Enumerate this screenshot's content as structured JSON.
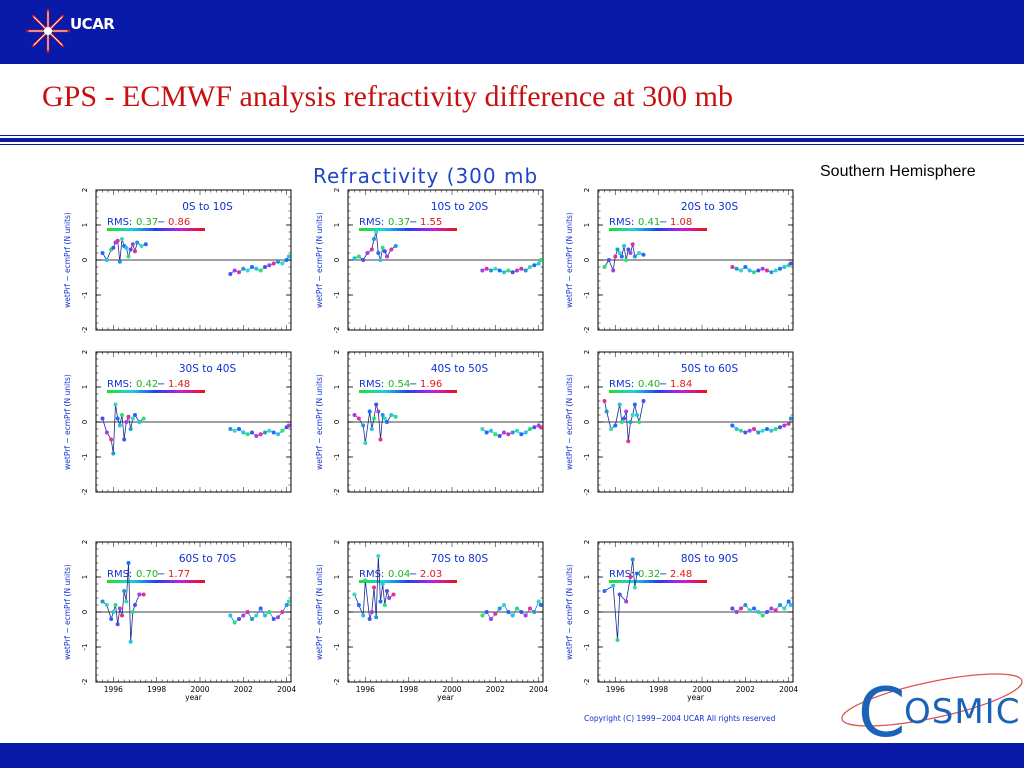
{
  "header": {
    "logo_text": "UCAR",
    "accent_color": "#0a1aa8"
  },
  "slide": {
    "title": "GPS - ECMWF analysis refractivity difference at 300 mb",
    "title_color": "#c81010",
    "subtitle": "Southern Hemisphere"
  },
  "figure": {
    "main_title": "Refractivity (300 mb",
    "y_axis_label": "wetPrf − ecmPrf (N units)",
    "x_axis_label": "year",
    "copyright": "Copyright (C) 1999−2004 UCAR All rights reserved"
  },
  "footer_logo": {
    "text": "OSMIC",
    "initial": "C"
  },
  "chart_data": [
    {
      "type": "scatter",
      "title": "0S to 10S",
      "rms_label": "RMS:",
      "rms_values": [
        "0.37",
        "0.86"
      ],
      "xlabel": "year",
      "ylabel": "wetPrf − ecmPrf (N units)",
      "xlim": [
        1995.2,
        2004.2
      ],
      "ylim": [
        -2,
        2
      ],
      "x_ticks": [
        "1996",
        "1998",
        "2000",
        "2002",
        "2004"
      ],
      "y_ticks": [
        "-2",
        "-1",
        "0",
        "1",
        "2"
      ],
      "series": [
        {
          "x": [
            1995.5,
            1995.7,
            1995.9,
            1996.0,
            1996.1,
            1996.2,
            1996.3,
            1996.4,
            1996.5,
            1996.6,
            1996.7,
            1996.8,
            1996.9,
            1997.0,
            1997.1,
            1997.3,
            1997.5
          ],
          "y": [
            0.2,
            0.0,
            0.3,
            0.35,
            0.5,
            0.55,
            -0.05,
            0.6,
            0.4,
            0.35,
            0.1,
            0.3,
            0.45,
            0.25,
            0.5,
            0.4,
            0.45
          ]
        },
        {
          "x": [
            2001.4,
            2001.6,
            2001.8,
            2002.0,
            2002.2,
            2002.4,
            2002.6,
            2002.8,
            2003.0,
            2003.2,
            2003.4,
            2003.6,
            2003.8,
            2004.0,
            2004.1
          ],
          "y": [
            -0.4,
            -0.3,
            -0.35,
            -0.25,
            -0.3,
            -0.2,
            -0.25,
            -0.3,
            -0.2,
            -0.15,
            -0.1,
            -0.05,
            -0.1,
            0.0,
            0.1
          ]
        }
      ]
    },
    {
      "type": "scatter",
      "title": "10S to 20S",
      "rms_label": "RMS:",
      "rms_values": [
        "0.37",
        "1.55"
      ],
      "xlabel": "year",
      "ylabel": "wetPrf − ecmPrf (N units)",
      "xlim": [
        1995.2,
        2004.2
      ],
      "ylim": [
        -2,
        2
      ],
      "x_ticks": [
        "1996",
        "1998",
        "2000",
        "2002",
        "2004"
      ],
      "y_ticks": [
        "-2",
        "-1",
        "0",
        "1",
        "2"
      ],
      "series": [
        {
          "x": [
            1995.5,
            1995.7,
            1995.9,
            1996.1,
            1996.3,
            1996.4,
            1996.5,
            1996.6,
            1996.7,
            1996.8,
            1996.9,
            1997.0,
            1997.2,
            1997.4
          ],
          "y": [
            0.05,
            0.1,
            0.0,
            0.2,
            0.3,
            0.6,
            0.8,
            0.2,
            0.0,
            0.35,
            0.25,
            0.1,
            0.3,
            0.4
          ]
        },
        {
          "x": [
            2001.4,
            2001.6,
            2001.8,
            2002.0,
            2002.2,
            2002.4,
            2002.6,
            2002.8,
            2003.0,
            2003.2,
            2003.4,
            2003.6,
            2003.8,
            2004.0,
            2004.1
          ],
          "y": [
            -0.3,
            -0.25,
            -0.3,
            -0.25,
            -0.3,
            -0.35,
            -0.3,
            -0.35,
            -0.3,
            -0.25,
            -0.3,
            -0.2,
            -0.15,
            -0.1,
            0.0
          ]
        }
      ]
    },
    {
      "type": "scatter",
      "title": "20S to 30S",
      "rms_label": "RMS:",
      "rms_values": [
        "0.41",
        "1.08"
      ],
      "xlabel": "year",
      "ylabel": "wetPrf − ecmPrf (N units)",
      "xlim": [
        1995.2,
        2004.2
      ],
      "ylim": [
        -2,
        2
      ],
      "x_ticks": [
        "1996",
        "1998",
        "2000",
        "2002",
        "2004"
      ],
      "y_ticks": [
        "-2",
        "-1",
        "0",
        "1",
        "2"
      ],
      "series": [
        {
          "x": [
            1995.5,
            1995.7,
            1995.9,
            1996.0,
            1996.1,
            1996.2,
            1996.3,
            1996.4,
            1996.5,
            1996.6,
            1996.7,
            1996.8,
            1996.9,
            1997.1,
            1997.3
          ],
          "y": [
            -0.2,
            0.0,
            -0.3,
            0.1,
            0.3,
            0.2,
            0.1,
            0.4,
            0.0,
            0.3,
            0.2,
            0.45,
            0.1,
            0.2,
            0.15
          ]
        },
        {
          "x": [
            2001.4,
            2001.6,
            2001.8,
            2002.0,
            2002.2,
            2002.4,
            2002.6,
            2002.8,
            2003.0,
            2003.2,
            2003.4,
            2003.6,
            2003.8,
            2004.0,
            2004.1
          ],
          "y": [
            -0.2,
            -0.25,
            -0.3,
            -0.2,
            -0.3,
            -0.35,
            -0.3,
            -0.25,
            -0.3,
            -0.35,
            -0.3,
            -0.25,
            -0.2,
            -0.15,
            -0.1
          ]
        }
      ]
    },
    {
      "type": "scatter",
      "title": "30S to 40S",
      "rms_label": "RMS:",
      "rms_values": [
        "0.42",
        "1.48"
      ],
      "xlabel": "year",
      "ylabel": "wetPrf − ecmPrf (N units)",
      "xlim": [
        1995.2,
        2004.2
      ],
      "ylim": [
        -2,
        2
      ],
      "x_ticks": [
        "1996",
        "1998",
        "2000",
        "2002",
        "2004"
      ],
      "y_ticks": [
        "-2",
        "-1",
        "0",
        "1",
        "2"
      ],
      "series": [
        {
          "x": [
            1995.5,
            1995.7,
            1995.9,
            1996.0,
            1996.1,
            1996.2,
            1996.3,
            1996.4,
            1996.5,
            1996.6,
            1996.7,
            1996.8,
            1996.9,
            1997.0,
            1997.2,
            1997.4
          ],
          "y": [
            0.1,
            -0.3,
            -0.5,
            -0.9,
            0.5,
            0.1,
            -0.1,
            0.2,
            -0.5,
            0.0,
            0.15,
            -0.2,
            0.1,
            0.2,
            0.0,
            0.1
          ]
        },
        {
          "x": [
            2001.4,
            2001.6,
            2001.8,
            2002.0,
            2002.2,
            2002.4,
            2002.6,
            2002.8,
            2003.0,
            2003.2,
            2003.4,
            2003.6,
            2003.8,
            2004.0,
            2004.1
          ],
          "y": [
            -0.2,
            -0.25,
            -0.2,
            -0.3,
            -0.35,
            -0.3,
            -0.4,
            -0.35,
            -0.3,
            -0.25,
            -0.3,
            -0.35,
            -0.25,
            -0.15,
            -0.1
          ]
        }
      ]
    },
    {
      "type": "scatter",
      "title": "40S to 50S",
      "rms_label": "RMS:",
      "rms_values": [
        "0.54",
        "1.96"
      ],
      "xlabel": "year",
      "ylabel": "wetPrf − ecmPrf (N units)",
      "xlim": [
        1995.2,
        2004.2
      ],
      "ylim": [
        -2,
        2
      ],
      "x_ticks": [
        "1996",
        "1998",
        "2000",
        "2002",
        "2004"
      ],
      "y_ticks": [
        "-2",
        "-1",
        "0",
        "1",
        "2"
      ],
      "series": [
        {
          "x": [
            1995.5,
            1995.7,
            1995.9,
            1996.0,
            1996.2,
            1996.3,
            1996.4,
            1996.5,
            1996.6,
            1996.7,
            1996.8,
            1996.9,
            1997.0,
            1997.2,
            1997.4
          ],
          "y": [
            0.2,
            0.1,
            -0.1,
            -0.6,
            0.3,
            -0.2,
            0.1,
            0.5,
            0.3,
            -0.5,
            0.2,
            0.1,
            0.0,
            0.2,
            0.15
          ]
        },
        {
          "x": [
            2001.4,
            2001.6,
            2001.8,
            2002.0,
            2002.2,
            2002.4,
            2002.6,
            2002.8,
            2003.0,
            2003.2,
            2003.4,
            2003.6,
            2003.8,
            2004.0,
            2004.1
          ],
          "y": [
            -0.2,
            -0.3,
            -0.25,
            -0.35,
            -0.4,
            -0.3,
            -0.35,
            -0.3,
            -0.25,
            -0.35,
            -0.3,
            -0.2,
            -0.15,
            -0.1,
            -0.15
          ]
        }
      ]
    },
    {
      "type": "scatter",
      "title": "50S to 60S",
      "rms_label": "RMS:",
      "rms_values": [
        "0.40",
        "1.84"
      ],
      "xlabel": "year",
      "ylabel": "wetPrf − ecmPrf (N units)",
      "xlim": [
        1995.2,
        2004.2
      ],
      "ylim": [
        -2,
        2
      ],
      "x_ticks": [
        "1996",
        "1998",
        "2000",
        "2002",
        "2004"
      ],
      "y_ticks": [
        "-2",
        "-1",
        "0",
        "1",
        "2"
      ],
      "series": [
        {
          "x": [
            1995.5,
            1995.6,
            1995.8,
            1996.0,
            1996.2,
            1996.3,
            1996.4,
            1996.5,
            1996.6,
            1996.7,
            1996.8,
            1996.9,
            1997.0,
            1997.1,
            1997.3
          ],
          "y": [
            0.6,
            0.3,
            -0.2,
            -0.1,
            0.5,
            0.0,
            0.1,
            0.3,
            -0.55,
            0.0,
            0.2,
            0.5,
            0.2,
            0.0,
            0.6
          ]
        },
        {
          "x": [
            2001.4,
            2001.6,
            2001.8,
            2002.0,
            2002.2,
            2002.4,
            2002.6,
            2002.8,
            2003.0,
            2003.2,
            2003.4,
            2003.6,
            2003.8,
            2004.0,
            2004.1
          ],
          "y": [
            -0.1,
            -0.2,
            -0.25,
            -0.3,
            -0.25,
            -0.2,
            -0.3,
            -0.25,
            -0.2,
            -0.25,
            -0.2,
            -0.15,
            -0.1,
            -0.05,
            0.1
          ]
        }
      ]
    },
    {
      "type": "scatter",
      "title": "60S to 70S",
      "rms_label": "RMS:",
      "rms_values": [
        "0.70",
        "1.77"
      ],
      "xlabel": "year",
      "ylabel": "wetPrf − ecmPrf (N units)",
      "xlim": [
        1995.2,
        2004.2
      ],
      "ylim": [
        -2,
        2
      ],
      "x_ticks": [
        "1996",
        "1998",
        "2000",
        "2002",
        "2004"
      ],
      "y_ticks": [
        "-2",
        "-1",
        "0",
        "1",
        "2"
      ],
      "series": [
        {
          "x": [
            1995.5,
            1995.7,
            1995.9,
            1996.0,
            1996.1,
            1996.2,
            1996.3,
            1996.4,
            1996.5,
            1996.6,
            1996.7,
            1996.8,
            1996.9,
            1997.0,
            1997.2,
            1997.4
          ],
          "y": [
            0.3,
            0.2,
            -0.2,
            0.0,
            0.2,
            -0.35,
            0.1,
            -0.1,
            0.6,
            0.3,
            1.4,
            -0.85,
            0.0,
            0.2,
            0.5,
            0.5
          ]
        },
        {
          "x": [
            2001.4,
            2001.6,
            2001.8,
            2002.0,
            2002.2,
            2002.4,
            2002.6,
            2002.8,
            2003.0,
            2003.2,
            2003.4,
            2003.6,
            2003.8,
            2004.0,
            2004.1
          ],
          "y": [
            -0.1,
            -0.3,
            -0.2,
            -0.1,
            0.0,
            -0.2,
            -0.1,
            0.1,
            -0.1,
            0.0,
            -0.2,
            -0.15,
            0.0,
            0.2,
            0.3
          ]
        }
      ]
    },
    {
      "type": "scatter",
      "title": "70S to 80S",
      "rms_label": "RMS:",
      "rms_values": [
        "0.04",
        "2.03"
      ],
      "xlabel": "year",
      "ylabel": "wetPrf − ecmPrf (N units)",
      "xlim": [
        1995.2,
        2004.2
      ],
      "ylim": [
        -2,
        2
      ],
      "x_ticks": [
        "1996",
        "1998",
        "2000",
        "2002",
        "2004"
      ],
      "y_ticks": [
        "-2",
        "-1",
        "0",
        "1",
        "2"
      ],
      "series": [
        {
          "x": [
            1995.5,
            1995.7,
            1995.9,
            1996.0,
            1996.2,
            1996.3,
            1996.4,
            1996.5,
            1996.6,
            1996.7,
            1996.8,
            1996.9,
            1997.0,
            1997.1,
            1997.3
          ],
          "y": [
            0.5,
            0.2,
            -0.1,
            0.9,
            -0.2,
            0.0,
            0.7,
            -0.15,
            1.6,
            0.3,
            0.8,
            0.2,
            0.6,
            0.4,
            0.5
          ]
        },
        {
          "x": [
            2001.4,
            2001.6,
            2001.8,
            2002.0,
            2002.2,
            2002.4,
            2002.6,
            2002.8,
            2003.0,
            2003.2,
            2003.4,
            2003.6,
            2003.8,
            2004.0,
            2004.1
          ],
          "y": [
            -0.1,
            0.0,
            -0.2,
            -0.05,
            0.1,
            0.2,
            0.0,
            -0.1,
            0.1,
            0.0,
            -0.1,
            0.1,
            0.0,
            0.3,
            0.2
          ]
        }
      ]
    },
    {
      "type": "scatter",
      "title": "80S to 90S",
      "rms_label": "RMS:",
      "rms_values": [
        "0.32",
        "2.48"
      ],
      "xlabel": "year",
      "ylabel": "wetPrf − ecmPrf (N units)",
      "xlim": [
        1995.2,
        2004.2
      ],
      "ylim": [
        -2,
        2
      ],
      "x_ticks": [
        "1996",
        "1998",
        "2000",
        "2002",
        "2004"
      ],
      "y_ticks": [
        "-2",
        "-1",
        "0",
        "1",
        "2"
      ],
      "series": [
        {
          "x": [
            1995.5,
            1995.9,
            1996.1,
            1996.2,
            1996.5,
            1996.7,
            1996.8,
            1996.9,
            1997.0
          ],
          "y": [
            0.6,
            0.75,
            -0.8,
            0.5,
            0.3,
            1.0,
            1.5,
            0.7,
            1.1
          ]
        },
        {
          "x": [
            2001.4,
            2001.6,
            2001.8,
            2002.0,
            2002.2,
            2002.4,
            2002.6,
            2002.8,
            2003.0,
            2003.2,
            2003.4,
            2003.6,
            2003.8,
            2004.0,
            2004.1
          ],
          "y": [
            0.1,
            0.0,
            0.1,
            0.2,
            0.05,
            0.1,
            0.0,
            -0.1,
            0.0,
            0.1,
            0.05,
            0.2,
            0.1,
            0.3,
            0.2
          ]
        }
      ]
    }
  ]
}
